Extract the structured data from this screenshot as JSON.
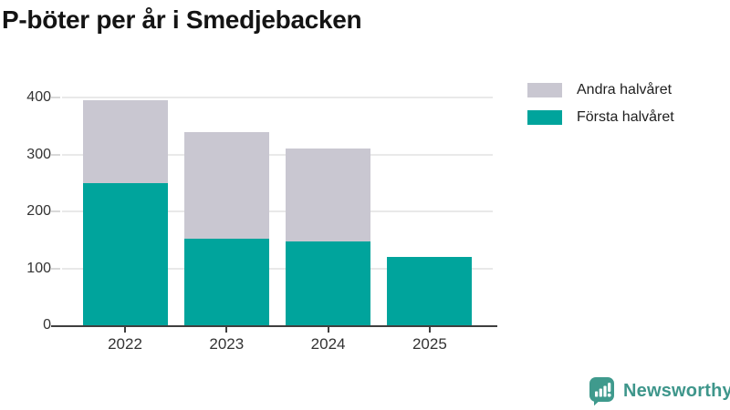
{
  "title": "P-böter per år i Smedjebacken",
  "legend": {
    "items": [
      {
        "label": "Andra halvåret",
        "color": "#c9c7d1"
      },
      {
        "label": "Första halvåret",
        "color": "#00a49c"
      }
    ]
  },
  "chart_data": {
    "type": "bar",
    "stacked": true,
    "title": "P-böter per år i Smedjebacken",
    "categories": [
      "2022",
      "2023",
      "2024",
      "2025"
    ],
    "series": [
      {
        "name": "Första halvåret",
        "color": "#00a49c",
        "values": [
          250,
          152,
          148,
          120
        ]
      },
      {
        "name": "Andra halvåret",
        "color": "#c9c7d1",
        "values": [
          145,
          188,
          162,
          0
        ]
      }
    ],
    "xlabel": "",
    "ylabel": "",
    "ylim": [
      0,
      400
    ],
    "yticks": [
      0,
      100,
      200,
      300,
      400
    ],
    "grid": true,
    "legend_position": "top-right"
  },
  "footer": {
    "brand": "Newsworthy",
    "logo_icon": "newsworthy-speech-bubble-bar-chart-icon"
  }
}
